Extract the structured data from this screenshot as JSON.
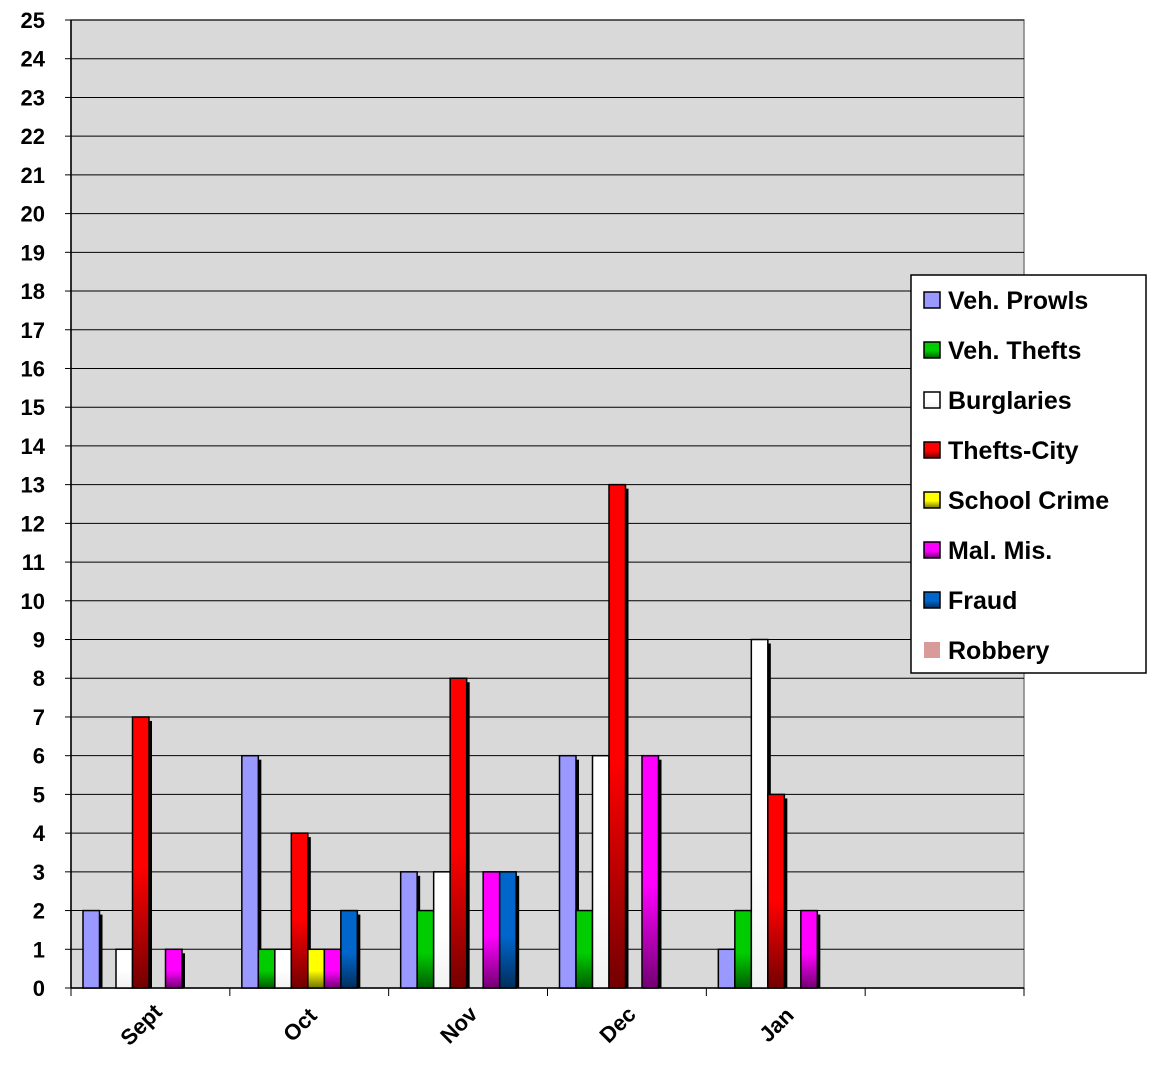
{
  "chart_data": {
    "type": "bar",
    "categories": [
      "Sept",
      "Oct",
      "Nov",
      "Dec",
      "Jan",
      ""
    ],
    "ylim": [
      0,
      25
    ],
    "yticks": [
      0,
      1,
      2,
      3,
      4,
      5,
      6,
      7,
      8,
      9,
      10,
      11,
      12,
      13,
      14,
      15,
      16,
      17,
      18,
      19,
      20,
      21,
      22,
      23,
      24,
      25
    ],
    "grid": true,
    "legend_position": "right",
    "plot_background": "#d9d9d9",
    "series": [
      {
        "name": "Veh. Prowls",
        "color": "#9999ff",
        "values": [
          2,
          6,
          3,
          6,
          1,
          0
        ]
      },
      {
        "name": "Veh. Thefts",
        "color": "#00cc00",
        "values": [
          0,
          1,
          2,
          2,
          2,
          0
        ]
      },
      {
        "name": "Burglaries",
        "color": "#ffffff",
        "values": [
          1,
          1,
          3,
          6,
          9,
          0
        ]
      },
      {
        "name": "Thefts-City",
        "color": "#ff0000",
        "values": [
          7,
          4,
          8,
          13,
          5,
          0
        ]
      },
      {
        "name": "School Crime",
        "color": "#ffff00",
        "values": [
          0,
          1,
          0,
          0,
          0,
          0
        ]
      },
      {
        "name": "Mal. Mis.",
        "color": "#ff00ff",
        "values": [
          1,
          1,
          3,
          6,
          2,
          0
        ]
      },
      {
        "name": "Fraud",
        "color": "#0066cc",
        "values": [
          0,
          2,
          3,
          0,
          0,
          0
        ]
      },
      {
        "name": "Robbery",
        "color": "#d99a9a",
        "values": [
          0,
          0,
          0,
          0,
          0,
          0
        ]
      }
    ]
  }
}
